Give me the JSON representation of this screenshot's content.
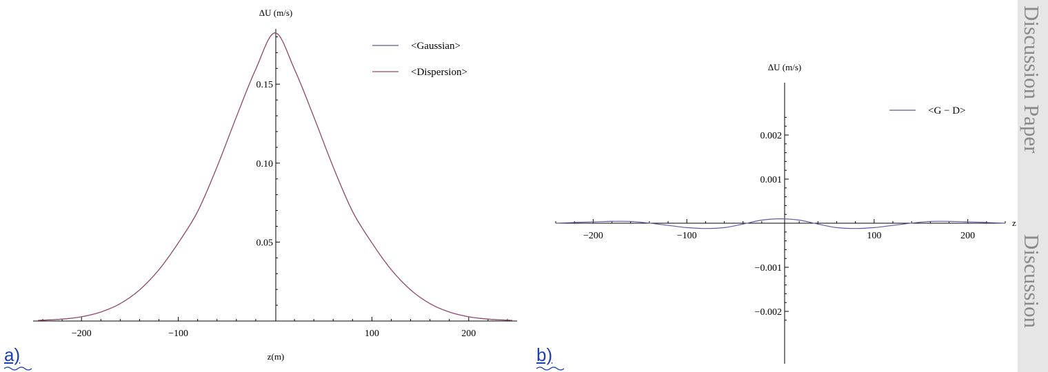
{
  "sidebar": {
    "top_text": "Discussion Paper",
    "bottom_text": "Discussion"
  },
  "panel_labels": {
    "a": "a)",
    "b": "b)"
  },
  "chart_data": [
    {
      "type": "line",
      "title": "",
      "ylabel": "ΔU (m/s)",
      "xlabel": "z(m)",
      "xlim": [
        -250,
        250
      ],
      "ylim": [
        0,
        0.185
      ],
      "xticks": [
        -200,
        -100,
        100,
        200
      ],
      "xtick_labels": [
        "−200",
        "−100",
        "100",
        "200"
      ],
      "yticks": [
        0.05,
        0.1,
        0.15
      ],
      "ytick_labels": [
        "0.05",
        "0.10",
        "0.15"
      ],
      "legend": "top-right",
      "colors": {
        "Gaussian": "#5a5aa8",
        "Dispersion": "#9a4a6a"
      },
      "series": [
        {
          "name": "<Gaussian>",
          "x": [
            -245,
            -220,
            -200,
            -180,
            -160,
            -140,
            -120,
            -100,
            -80,
            -60,
            -40,
            -20,
            0,
            20,
            40,
            60,
            80,
            100,
            120,
            140,
            160,
            180,
            200,
            220,
            245
          ],
          "y": [
            0.0004,
            0.0012,
            0.0027,
            0.0057,
            0.011,
            0.0197,
            0.0325,
            0.0495,
            0.0694,
            0.0976,
            0.1293,
            0.1595,
            0.1825,
            0.1595,
            0.1293,
            0.0976,
            0.0694,
            0.0495,
            0.0325,
            0.0197,
            0.011,
            0.0057,
            0.0027,
            0.0012,
            0.0004
          ]
        },
        {
          "name": "<Dispersion>",
          "x": [
            -245,
            -220,
            -200,
            -180,
            -160,
            -140,
            -120,
            -100,
            -80,
            -60,
            -40,
            -20,
            0,
            20,
            40,
            60,
            80,
            100,
            120,
            140,
            160,
            180,
            200,
            220,
            245
          ],
          "y": [
            0.0004,
            0.0012,
            0.0027,
            0.0057,
            0.011,
            0.0197,
            0.0325,
            0.0495,
            0.0694,
            0.0976,
            0.1293,
            0.1595,
            0.1825,
            0.1595,
            0.1293,
            0.0976,
            0.0694,
            0.0495,
            0.0325,
            0.0197,
            0.011,
            0.0057,
            0.0027,
            0.0012,
            0.0004
          ]
        }
      ]
    },
    {
      "type": "line",
      "title": "",
      "ylabel": "ΔU (m/s)",
      "xlabel": "z (m)",
      "xlim": [
        -240,
        240
      ],
      "ylim": [
        -0.0025,
        0.0025
      ],
      "xticks": [
        -200,
        -100,
        100,
        200
      ],
      "xtick_labels": [
        "−200",
        "−100",
        "100",
        "200"
      ],
      "yticks": [
        -0.002,
        -0.001,
        0.001,
        0.002
      ],
      "ytick_labels": [
        "−0.002",
        "−0.001",
        "0.001",
        "0.002"
      ],
      "legend": "top-right",
      "colors": {
        "G − D": "#5a5aa8"
      },
      "series": [
        {
          "name": "<G − D>",
          "x": [
            -240,
            -200,
            -160,
            -120,
            -100,
            -80,
            -60,
            -40,
            -20,
            0,
            20,
            40,
            60,
            80,
            100,
            120,
            160,
            200,
            240
          ],
          "y": [
            0.0,
            3e-05,
            4e-05,
            -5e-05,
            -0.0001,
            -0.00012,
            -0.0001,
            -2e-05,
            7e-05,
            0.0001,
            7e-05,
            -2e-05,
            -0.0001,
            -0.00012,
            -0.0001,
            -5e-05,
            4e-05,
            3e-05,
            0.0
          ]
        }
      ]
    }
  ]
}
